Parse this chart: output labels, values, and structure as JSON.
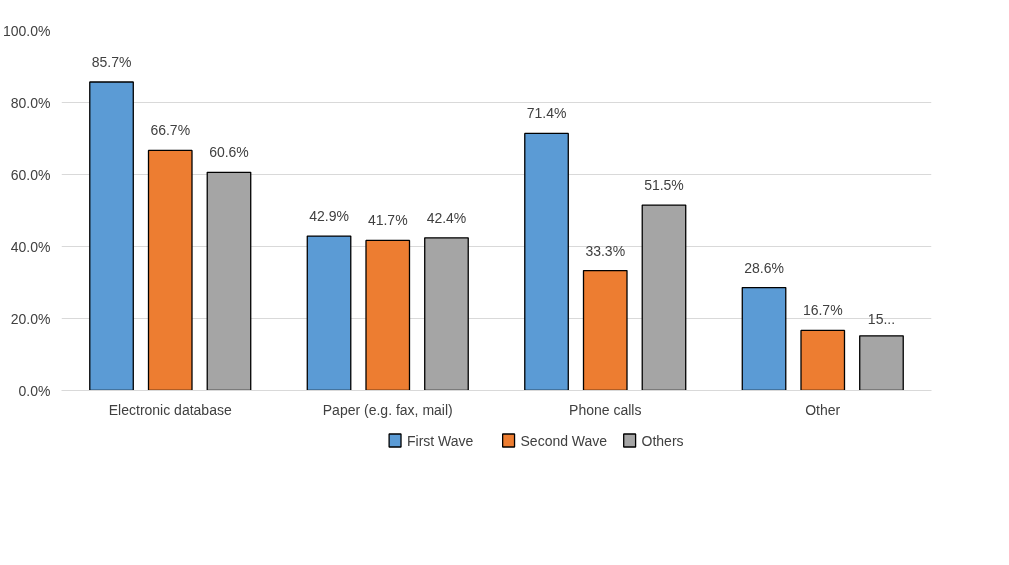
{
  "chart_data": {
    "type": "bar",
    "categories": [
      "Electronic database",
      "Paper (e.g. fax, mail)",
      "Phone calls",
      "Other"
    ],
    "series": [
      {
        "name": "First Wave",
        "color": "#5b9bd5",
        "values": [
          85.7,
          42.9,
          71.4,
          28.6
        ],
        "value_labels": [
          "85.7%",
          "42.9%",
          "71.4%",
          "28.6%"
        ]
      },
      {
        "name": "Second Wave",
        "color": "#ed7d31",
        "values": [
          66.7,
          41.7,
          33.3,
          16.7
        ],
        "value_labels": [
          "66.7%",
          "41.7%",
          "33.3%",
          "16.7%"
        ]
      },
      {
        "name": "Others",
        "color": "#a5a5a5",
        "values": [
          60.6,
          42.4,
          51.5,
          15.2
        ],
        "value_labels": [
          "60.6%",
          "42.4%",
          "51.5%",
          "15..."
        ]
      }
    ],
    "ylim": [
      0,
      100
    ],
    "yticks": [
      {
        "value": 0,
        "label": "0.0%"
      },
      {
        "value": 20,
        "label": "20.0%"
      },
      {
        "value": 40,
        "label": "40.0%"
      },
      {
        "value": 60,
        "label": "60.0%"
      },
      {
        "value": 80,
        "label": "80.0%"
      },
      {
        "value": 100,
        "label": "100.0%"
      }
    ],
    "grid": "y",
    "legend": "bottom"
  }
}
